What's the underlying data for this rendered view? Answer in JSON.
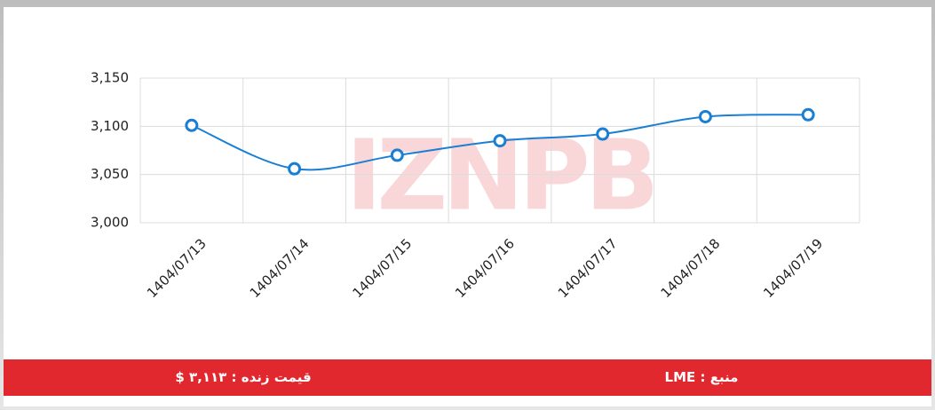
{
  "chart_data": {
    "type": "line",
    "categories": [
      "1404/07/13",
      "1404/07/14",
      "1404/07/15",
      "1404/07/16",
      "1404/07/17",
      "1404/07/18",
      "1404/07/19"
    ],
    "values": [
      3101,
      3056,
      3070,
      3085,
      3092,
      3110,
      3112
    ],
    "color": "#1a7fd4",
    "ylim": [
      3000,
      3150
    ],
    "yticks": [
      {
        "value": 3000,
        "label": "3,000"
      },
      {
        "value": 3050,
        "label": "3,050"
      },
      {
        "value": 3100,
        "label": "3,100"
      },
      {
        "value": 3150,
        "label": "3,150"
      }
    ],
    "grid": true
  },
  "watermark": "IZNPB",
  "footer": {
    "live_price": "قیمت زنده : ۳,۱۱۳ $",
    "source": "منبع : LME"
  }
}
